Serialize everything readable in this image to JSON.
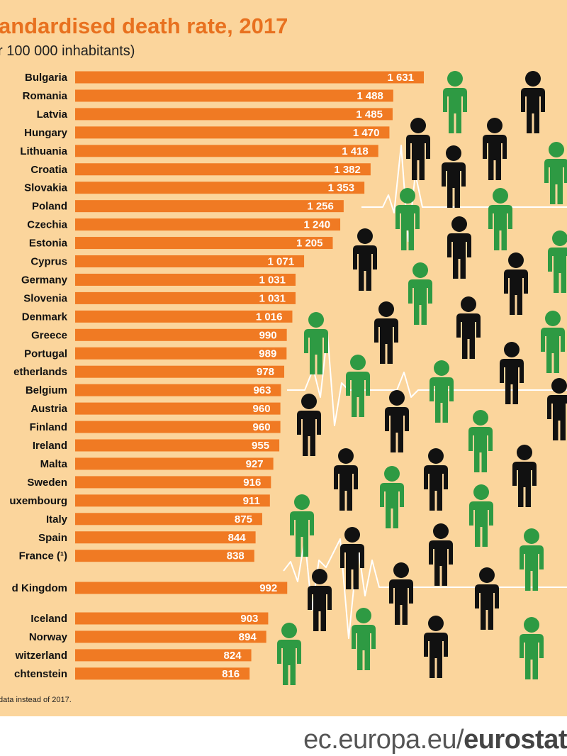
{
  "chart_data": {
    "type": "bar",
    "orientation": "horizontal",
    "title": "andardised death rate, 2017",
    "subtitle": "r 100 000 inhabitants)",
    "groups": [
      {
        "categories": [
          "Bulgaria",
          "Romania",
          "Latvia",
          "Hungary",
          "Lithuania",
          "Croatia",
          "Slovakia",
          "Poland",
          "Czechia",
          "Estonia",
          "Cyprus",
          "Germany",
          "Slovenia",
          "Denmark",
          "Greece",
          "Portugal",
          "etherlands",
          "Belgium",
          "Austria",
          "Finland",
          "Ireland",
          "Malta",
          "Sweden",
          "uxembourg",
          "Italy",
          "Spain",
          "France (¹)"
        ],
        "values": [
          1631,
          1488,
          1485,
          1470,
          1418,
          1382,
          1353,
          1256,
          1240,
          1205,
          1071,
          1031,
          1031,
          1016,
          990,
          989,
          978,
          963,
          960,
          960,
          955,
          927,
          916,
          911,
          875,
          844,
          838
        ],
        "labels": [
          "1 631",
          "1 488",
          "1 485",
          "1 470",
          "1 418",
          "1 382",
          "1 353",
          "1 256",
          "1 240",
          "1 205",
          "1 071",
          "1 031",
          "1 031",
          "1 016",
          "990",
          "989",
          "978",
          "963",
          "960",
          "960",
          "955",
          "927",
          "916",
          "911",
          "875",
          "844",
          "838"
        ]
      },
      {
        "categories": [
          "d Kingdom"
        ],
        "values": [
          992
        ],
        "labels": [
          "992"
        ]
      },
      {
        "categories": [
          "Iceland",
          "Norway",
          "witzerland",
          "chtenstein"
        ],
        "values": [
          903,
          894,
          824,
          816
        ],
        "labels": [
          "903",
          "894",
          "824",
          "816"
        ]
      }
    ],
    "bar_color": "#f07a23",
    "background_color": "#fbd59c",
    "footnote": "data instead of 2017."
  },
  "footer": {
    "source_prefix": "ec.europa.eu/",
    "source_brand": "eurostat"
  },
  "colors": {
    "title": "#e8711f",
    "figure_green": "#2e9a43",
    "figure_black": "#111111"
  },
  "icons": {
    "figure": "person-icon",
    "line": "heartbeat-line"
  }
}
